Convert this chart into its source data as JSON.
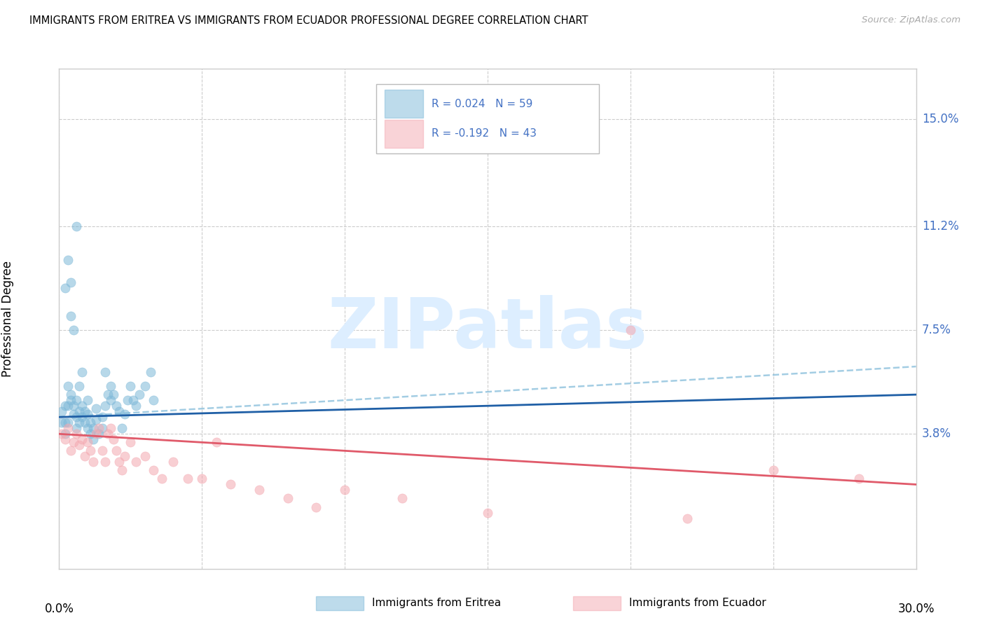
{
  "title": "IMMIGRANTS FROM ERITREA VS IMMIGRANTS FROM ECUADOR PROFESSIONAL DEGREE CORRELATION CHART",
  "source": "Source: ZipAtlas.com",
  "ylabel": "Professional Degree",
  "yticks_labels": [
    "15.0%",
    "11.2%",
    "7.5%",
    "3.8%"
  ],
  "yticks_values": [
    0.15,
    0.112,
    0.075,
    0.038
  ],
  "xlim": [
    0.0,
    0.3
  ],
  "ylim": [
    -0.01,
    0.168
  ],
  "color_eritrea": "#7db8d8",
  "color_ecuador": "#f4a8b0",
  "color_trendline_eritrea": "#1f5fa6",
  "color_trendline_ecuador": "#e05a6a",
  "color_dashed": "#7db8d8",
  "color_axis_labels": "#4472C4",
  "background": "#ffffff",
  "eritrea_x": [
    0.001,
    0.001,
    0.002,
    0.002,
    0.002,
    0.002,
    0.003,
    0.003,
    0.003,
    0.003,
    0.004,
    0.004,
    0.004,
    0.004,
    0.005,
    0.005,
    0.005,
    0.006,
    0.006,
    0.006,
    0.006,
    0.007,
    0.007,
    0.007,
    0.008,
    0.008,
    0.008,
    0.009,
    0.009,
    0.01,
    0.01,
    0.01,
    0.011,
    0.011,
    0.012,
    0.012,
    0.013,
    0.013,
    0.014,
    0.015,
    0.015,
    0.016,
    0.016,
    0.017,
    0.018,
    0.018,
    0.019,
    0.02,
    0.021,
    0.022,
    0.023,
    0.024,
    0.025,
    0.026,
    0.027,
    0.028,
    0.03,
    0.032,
    0.033
  ],
  "eritrea_y": [
    0.042,
    0.046,
    0.038,
    0.042,
    0.048,
    0.09,
    0.042,
    0.048,
    0.1,
    0.055,
    0.05,
    0.052,
    0.092,
    0.08,
    0.045,
    0.048,
    0.075,
    0.04,
    0.044,
    0.05,
    0.112,
    0.042,
    0.046,
    0.055,
    0.044,
    0.048,
    0.06,
    0.042,
    0.046,
    0.04,
    0.045,
    0.05,
    0.038,
    0.042,
    0.036,
    0.04,
    0.043,
    0.047,
    0.038,
    0.04,
    0.044,
    0.048,
    0.06,
    0.052,
    0.05,
    0.055,
    0.052,
    0.048,
    0.046,
    0.04,
    0.045,
    0.05,
    0.055,
    0.05,
    0.048,
    0.052,
    0.055,
    0.06,
    0.05
  ],
  "ecuador_x": [
    0.001,
    0.002,
    0.003,
    0.004,
    0.005,
    0.006,
    0.007,
    0.008,
    0.009,
    0.01,
    0.011,
    0.012,
    0.013,
    0.014,
    0.015,
    0.016,
    0.017,
    0.018,
    0.019,
    0.02,
    0.021,
    0.022,
    0.023,
    0.025,
    0.027,
    0.03,
    0.033,
    0.036,
    0.04,
    0.045,
    0.05,
    0.055,
    0.06,
    0.07,
    0.08,
    0.09,
    0.1,
    0.12,
    0.15,
    0.2,
    0.22,
    0.25,
    0.28
  ],
  "ecuador_y": [
    0.038,
    0.036,
    0.04,
    0.032,
    0.035,
    0.038,
    0.034,
    0.036,
    0.03,
    0.035,
    0.032,
    0.028,
    0.038,
    0.04,
    0.032,
    0.028,
    0.038,
    0.04,
    0.036,
    0.032,
    0.028,
    0.025,
    0.03,
    0.035,
    0.028,
    0.03,
    0.025,
    0.022,
    0.028,
    0.022,
    0.022,
    0.035,
    0.02,
    0.018,
    0.015,
    0.012,
    0.018,
    0.015,
    0.01,
    0.075,
    0.008,
    0.025,
    0.022
  ],
  "eritrea_trend": [
    0.0,
    0.3,
    0.044,
    0.052
  ],
  "ecuador_trend": [
    0.0,
    0.3,
    0.038,
    0.02
  ],
  "eritrea_dashed": [
    0.0,
    0.3,
    0.044,
    0.062
  ],
  "watermark_text": "ZIPatlas",
  "watermark_color": "#ddeeff",
  "legend_r1": "R = 0.024",
  "legend_n1": "N = 59",
  "legend_r2": "R = -0.192",
  "legend_n2": "N = 43",
  "legend_label1": "Immigrants from Eritrea",
  "legend_label2": "Immigrants from Ecuador"
}
